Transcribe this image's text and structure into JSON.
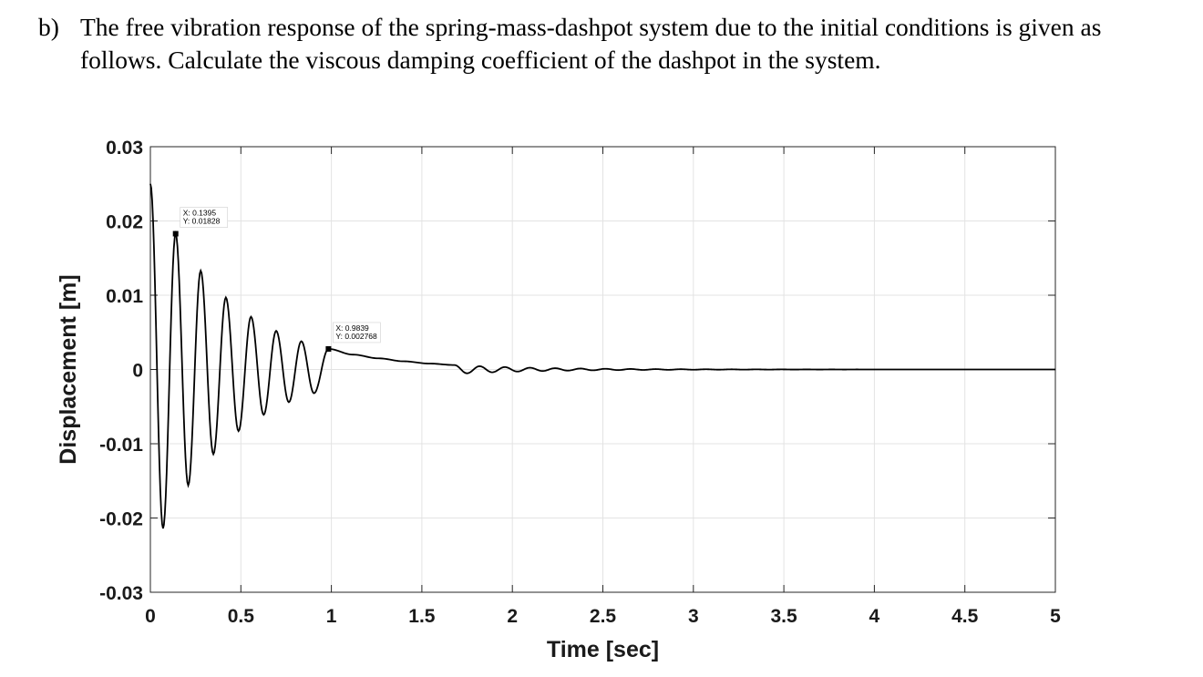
{
  "question": {
    "label": "b)",
    "text": "The free vibration response of the spring-mass-dashpot system due to the initial conditions is given as follows. Calculate the viscous damping coefficient of the dashpot in the system."
  },
  "chart_data": {
    "type": "line",
    "title": "",
    "xlabel": "Time [sec]",
    "ylabel": "Displacement [m]",
    "xlim": [
      0,
      5
    ],
    "ylim": [
      -0.03,
      0.03
    ],
    "xticks": [
      0,
      0.5,
      1,
      1.5,
      2,
      2.5,
      3,
      3.5,
      4,
      4.5,
      5
    ],
    "xtick_labels": [
      "0",
      "0.5",
      "1",
      "1.5",
      "2",
      "2.5",
      "3",
      "3.5",
      "4",
      "4.5",
      "5"
    ],
    "yticks": [
      -0.03,
      -0.02,
      -0.01,
      0,
      0.01,
      0.02,
      0.03
    ],
    "ytick_labels": [
      "-0.03",
      "-0.02",
      "-0.01",
      "0",
      "0.01",
      "0.02",
      "0.03"
    ],
    "grid": true,
    "line_color": "#000000",
    "series": [
      {
        "initial_displacement": 0.025,
        "peak_times": [
          0.1395,
          0.278,
          0.417,
          0.556,
          0.695,
          0.834,
          0.9839,
          1.12,
          1.26,
          1.4,
          1.54,
          1.68
        ],
        "peak_values": [
          0.01828,
          0.0133,
          0.0097,
          0.0071,
          0.0052,
          0.0038,
          0.002768,
          0.002,
          0.0015,
          0.0011,
          0.0008,
          0.0006
        ],
        "trough_times": [
          0.07,
          0.209,
          0.348,
          0.487,
          0.626,
          0.765,
          0.904
        ],
        "trough_values": [
          -0.0214,
          -0.0156,
          -0.0114,
          -0.0083,
          -0.0061,
          -0.0044,
          -0.0032
        ]
      }
    ],
    "annotations": [
      {
        "x": 0.1395,
        "y": 0.01828,
        "line1": "X: 0.1395",
        "line2": "Y: 0.01828"
      },
      {
        "x": 0.9839,
        "y": 0.002768,
        "line1": "X: 0.9839",
        "line2": "Y: 0.002768"
      }
    ]
  }
}
